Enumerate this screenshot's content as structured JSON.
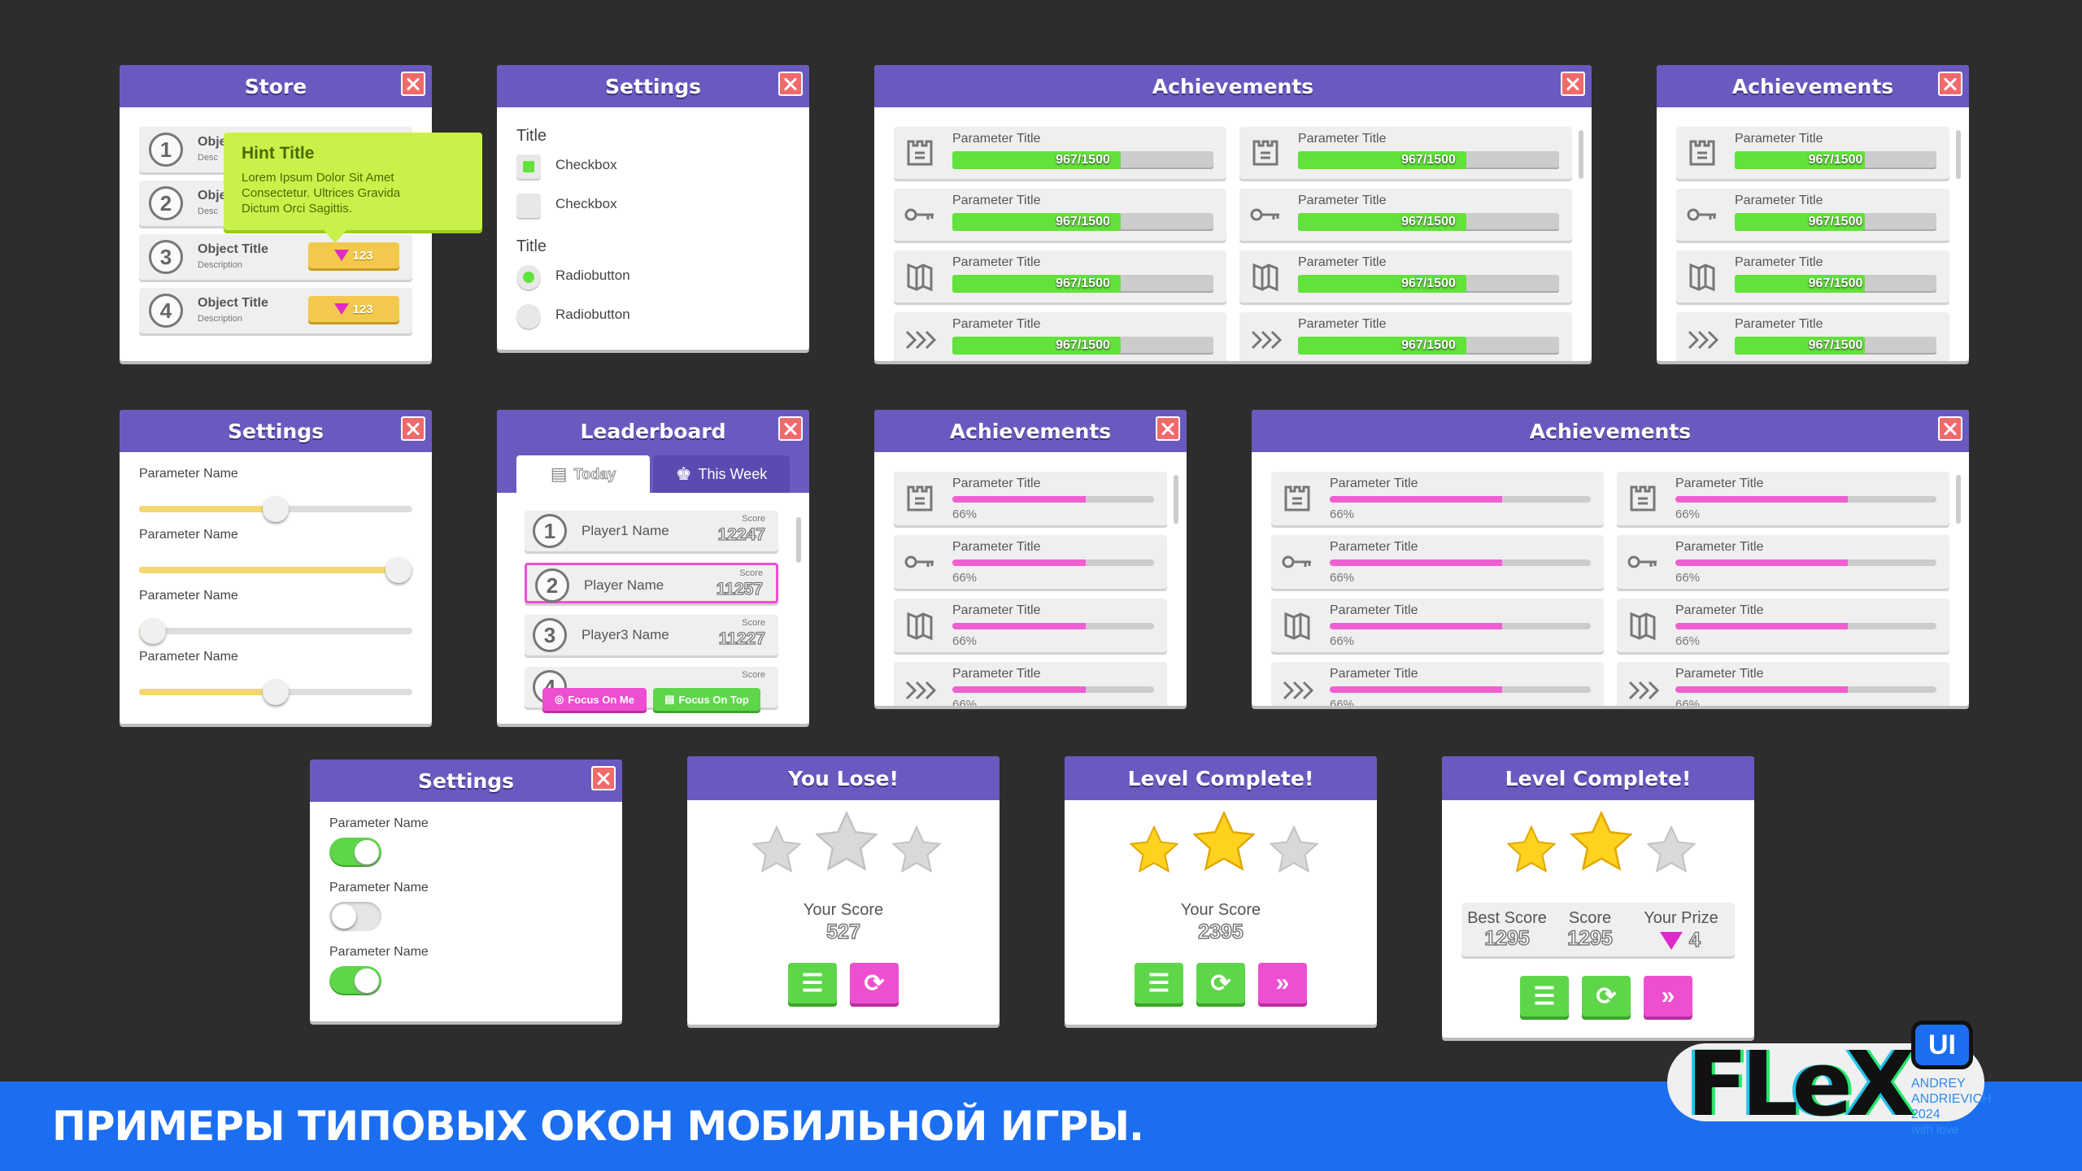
{
  "store": {
    "title": "Store",
    "hint_title": "Hint Title",
    "hint_text": "Lorem Ipsum Dolor Sit Amet Consectetur. Ultrices Gravida Dictum Orci Sagittis.",
    "items": [
      {
        "num": "1",
        "title": "Obje",
        "desc": "Desc"
      },
      {
        "num": "2",
        "title": "Obje",
        "desc": "Desc"
      },
      {
        "num": "3",
        "title": "Object Title",
        "desc": "Description",
        "price": "123"
      },
      {
        "num": "4",
        "title": "Object Title",
        "desc": "Description",
        "price": "123"
      }
    ]
  },
  "settings1": {
    "title": "Settings",
    "title1": "Title",
    "checkbox1": "Checkbox",
    "checkbox2": "Checkbox",
    "title2": "Title",
    "radio1": "Radiobutton",
    "radio2": "Radiobutton"
  },
  "ach_wide_green": {
    "title": "Achievements",
    "param": "Parameter Title",
    "value": "967/1500",
    "progress": 0.645
  },
  "ach_narrow_green": {
    "title": "Achievements",
    "param": "Parameter Title",
    "value": "967/1500",
    "progress": 0.645
  },
  "settings2": {
    "title": "Settings",
    "params": [
      {
        "label": "Parameter Name",
        "value": 0.5
      },
      {
        "label": "Parameter Name",
        "value": 0.95
      },
      {
        "label": "Parameter Name",
        "value": 0.05
      },
      {
        "label": "Parameter Name",
        "value": 0.5
      }
    ]
  },
  "leaderboard": {
    "title": "Leaderboard",
    "tab_today": "Today",
    "tab_week": "This Week",
    "score_label": "Score",
    "rows": [
      {
        "num": "1",
        "name": "Player1 Name",
        "score": "12247"
      },
      {
        "num": "2",
        "name": "Player Name",
        "score": "11257"
      },
      {
        "num": "3",
        "name": "Player3 Name",
        "score": "11227"
      },
      {
        "num": "4",
        "name": "",
        "score": ""
      }
    ],
    "focus_me": "Focus On Me",
    "focus_top": "Focus On Top"
  },
  "ach_pink_narrow": {
    "title": "Achievements",
    "param": "Parameter Title",
    "pct": "66%",
    "progress": 0.66
  },
  "ach_pink_wide": {
    "title": "Achievements",
    "param": "Parameter Title",
    "pct": "66%",
    "progress": 0.66
  },
  "settings3": {
    "title": "Settings",
    "params": [
      {
        "label": "Parameter Name",
        "on": true
      },
      {
        "label": "Parameter Name",
        "on": false
      },
      {
        "label": "Parameter Name",
        "on": true
      }
    ]
  },
  "lose": {
    "title": "You Lose!",
    "score_label": "Your Score",
    "score": "527",
    "stars": 0
  },
  "complete1": {
    "title": "Level Complete!",
    "score_label": "Your Score",
    "score": "2395",
    "stars": 2
  },
  "complete2": {
    "title": "Level Complete!",
    "best_label": "Best Score",
    "best": "1295",
    "score_label": "Score",
    "score": "1295",
    "prize_label": "Your Prize",
    "prize": "4",
    "stars": 2
  },
  "footer": {
    "text": "ПРИМЕРЫ ТИПОВЫХ ОКОН МОБИЛЬНОЙ ИГРЫ."
  },
  "logo": {
    "flex": "FLeX",
    "ui": "UI",
    "author1": "ANDREY",
    "author2": "ANDRIEVICH",
    "year": "2024",
    "tag": "with love"
  }
}
